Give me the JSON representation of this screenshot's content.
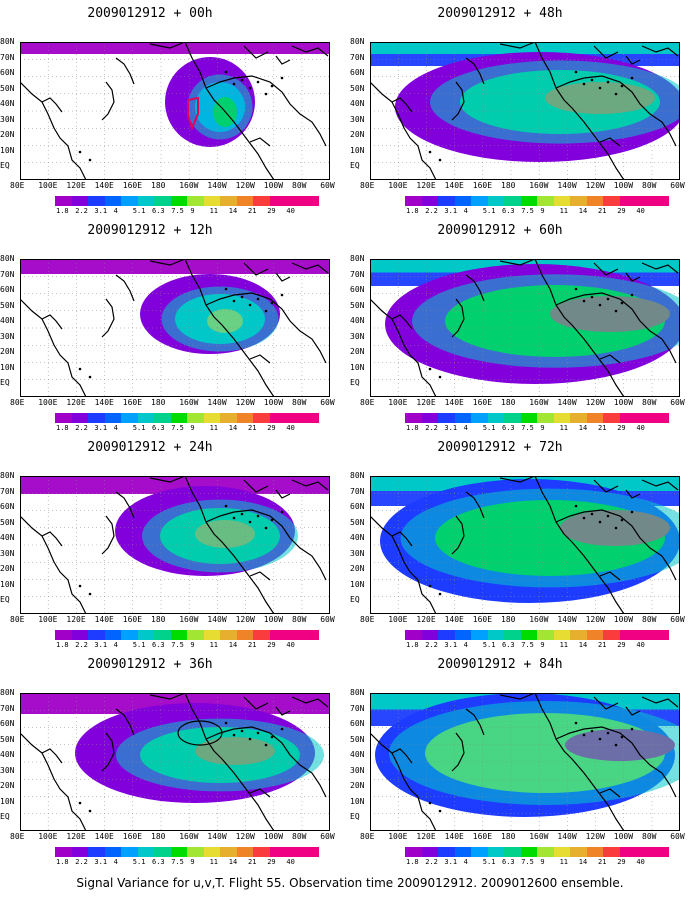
{
  "panels": [
    {
      "title": "2009012912 + 00h",
      "level": 0
    },
    {
      "title": "2009012912 + 48h",
      "level": 4
    },
    {
      "title": "2009012912 + 12h",
      "level": 1
    },
    {
      "title": "2009012912 + 60h",
      "level": 5
    },
    {
      "title": "2009012912 + 24h",
      "level": 2
    },
    {
      "title": "2009012912 + 72h",
      "level": 6
    },
    {
      "title": "2009012912 + 36h",
      "level": 3
    },
    {
      "title": "2009012912 + 84h",
      "level": 7
    }
  ],
  "lat_labels": [
    "80N",
    "70N",
    "60N",
    "50N",
    "40N",
    "30N",
    "20N",
    "10N",
    "EQ"
  ],
  "lon_labels": [
    "80E",
    "100E",
    "120E",
    "140E",
    "160E",
    "180",
    "160W",
    "140W",
    "120W",
    "100W",
    "80W",
    "60W"
  ],
  "colorbar": {
    "labels": [
      "1.8",
      "2.2",
      "3.1",
      "4",
      "5.1",
      "6.3",
      "7.5",
      "9",
      "11",
      "14",
      "21",
      "29",
      "40"
    ],
    "colors": [
      "#a000c8",
      "#8200dc",
      "#1e3cff",
      "#00a0ff",
      "#00c8c8",
      "#00d28c",
      "#00dc00",
      "#a0e632",
      "#e6dc32",
      "#e6af2d",
      "#f08228",
      "#fa3c3c",
      "#f00082"
    ]
  },
  "footer": "Signal Variance for u,v,T. Flight 55. Observation time 2009012912. 2009012600 ensemble."
}
